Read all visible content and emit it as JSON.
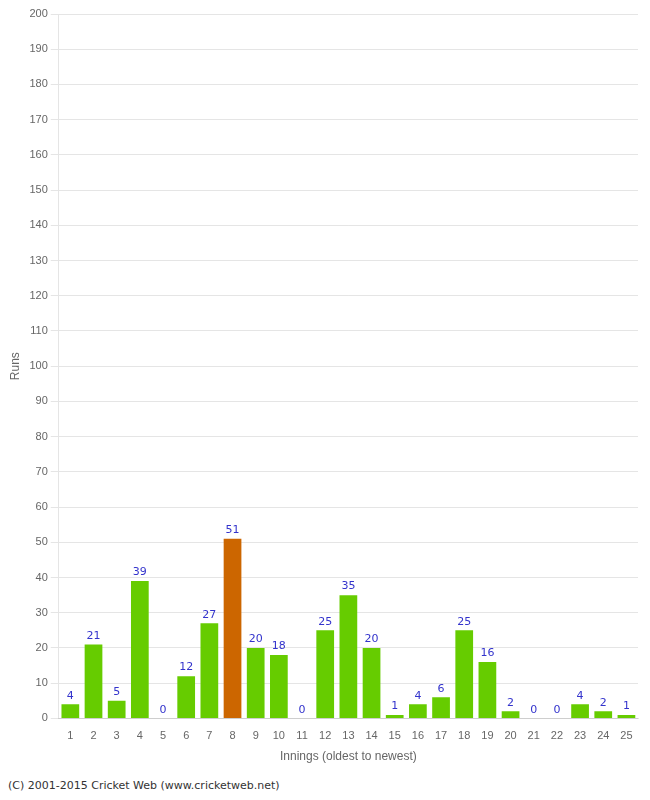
{
  "chart_data": {
    "type": "bar",
    "categories": [
      "1",
      "2",
      "3",
      "4",
      "5",
      "6",
      "7",
      "8",
      "9",
      "10",
      "11",
      "12",
      "13",
      "14",
      "15",
      "16",
      "17",
      "18",
      "19",
      "20",
      "21",
      "22",
      "23",
      "24",
      "25"
    ],
    "values": [
      4,
      21,
      5,
      39,
      0,
      12,
      27,
      51,
      20,
      18,
      0,
      25,
      35,
      20,
      1,
      4,
      6,
      25,
      16,
      2,
      0,
      0,
      4,
      2,
      1
    ],
    "colors": [
      "#66cc00",
      "#66cc00",
      "#66cc00",
      "#66cc00",
      "#66cc00",
      "#66cc00",
      "#66cc00",
      "#cc6600",
      "#66cc00",
      "#66cc00",
      "#66cc00",
      "#66cc00",
      "#66cc00",
      "#66cc00",
      "#66cc00",
      "#66cc00",
      "#66cc00",
      "#66cc00",
      "#66cc00",
      "#66cc00",
      "#66cc00",
      "#66cc00",
      "#66cc00",
      "#66cc00",
      "#66cc00"
    ],
    "xlabel": "Innings (oldest to newest)",
    "ylabel": "Runs",
    "ylim": [
      0,
      200
    ],
    "yticks": [
      0,
      10,
      20,
      30,
      40,
      50,
      60,
      70,
      80,
      90,
      100,
      110,
      120,
      130,
      140,
      150,
      160,
      170,
      180,
      190,
      200
    ],
    "grid": true,
    "data_labels": true,
    "annotations": [
      "(C) 2001-2015 Cricket Web (www.cricketweb.net)"
    ]
  }
}
